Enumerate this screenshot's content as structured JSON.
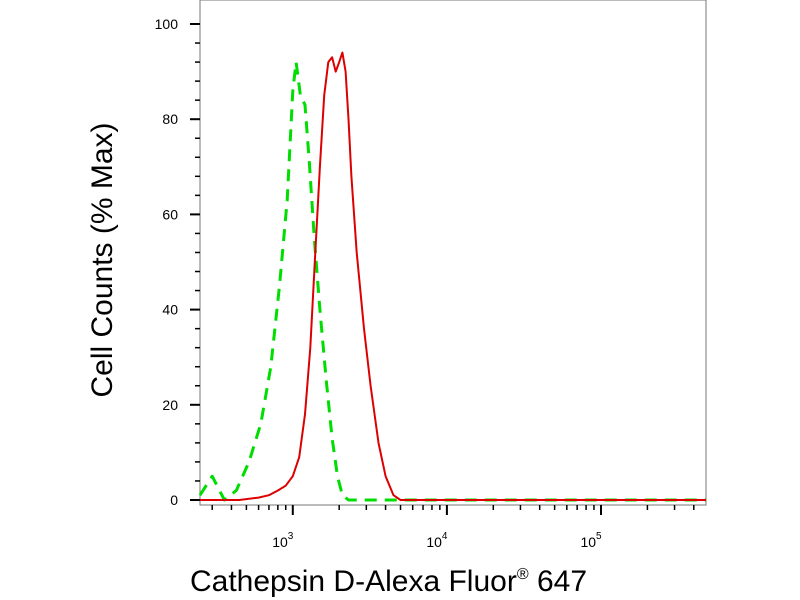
{
  "chart_data": {
    "type": "line",
    "xlabel": "Cathepsin D-Alexa Fluor",
    "xlabel_superscript": "®",
    "xlabel_suffix": " 647",
    "ylabel": "Cell Counts (% Max)",
    "x_scale": "log",
    "xlim": [
      250,
      480000
    ],
    "ylim": [
      0,
      100
    ],
    "y_ticks": [
      0,
      20,
      40,
      60,
      80,
      100
    ],
    "y_tick_labels": [
      "0",
      "20",
      "40",
      "60",
      "80",
      "100"
    ],
    "x_major_ticks": [
      {
        "value": 1000,
        "base": "10",
        "exp": "3"
      },
      {
        "value": 10000,
        "base": "10",
        "exp": "4"
      },
      {
        "value": 100000,
        "base": "10",
        "exp": "5"
      }
    ],
    "grid": false,
    "legend": "none",
    "series": [
      {
        "color": "#00dd00",
        "dash": "dashed",
        "x": [
          250,
          300,
          360,
          430,
          520,
          620,
          720,
          820,
          920,
          1000,
          1050,
          1120,
          1200,
          1280,
          1380,
          1500,
          1650,
          1800,
          1950,
          2100,
          2300,
          2600,
          4000,
          480000
        ],
        "y": [
          1,
          5,
          0,
          2,
          8,
          16,
          28,
          45,
          63,
          86,
          92,
          85,
          83,
          71,
          55,
          40,
          25,
          13,
          5,
          1,
          0,
          0,
          0,
          0
        ]
      },
      {
        "color": "#dd0000",
        "dash": "solid",
        "x": [
          250,
          450,
          600,
          700,
          800,
          900,
          1000,
          1100,
          1200,
          1300,
          1400,
          1500,
          1600,
          1700,
          1800,
          1900,
          2000,
          2100,
          2200,
          2300,
          2400,
          2600,
          2900,
          3200,
          3600,
          4000,
          4500,
          5000,
          5500,
          480000
        ],
        "y": [
          0,
          0,
          0.5,
          1,
          2,
          3,
          5,
          9,
          18,
          32,
          52,
          70,
          85,
          92,
          93,
          90,
          92,
          94,
          90,
          80,
          68,
          52,
          36,
          24,
          12,
          5,
          1,
          0,
          0,
          0
        ]
      }
    ]
  }
}
